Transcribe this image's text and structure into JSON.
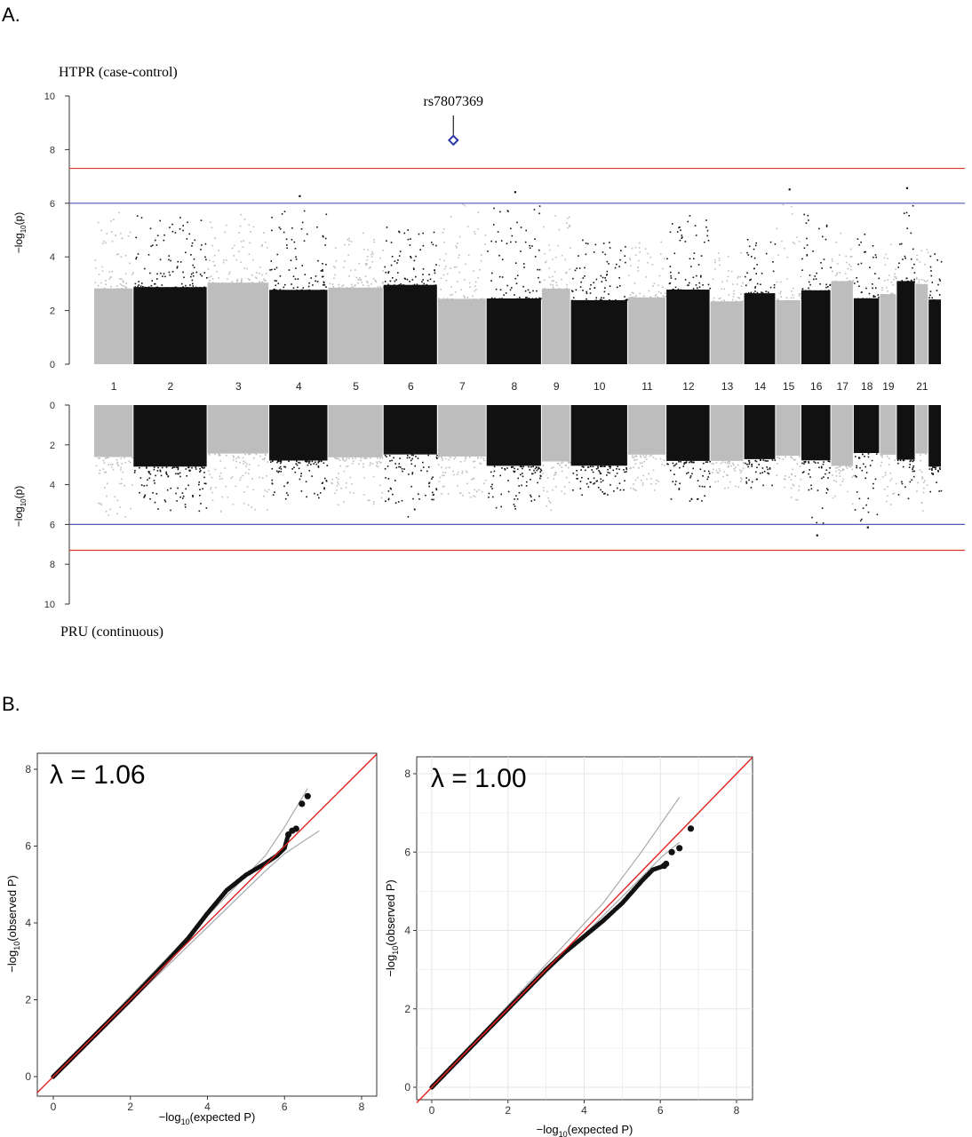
{
  "panel_a_label": "A.",
  "panel_b_label": "B.",
  "chart_data": [
    {
      "type": "scatter",
      "subtype": "mirrored-manhattan",
      "top_title": "HTPR (case-control)",
      "bottom_title": "PRU (continuous)",
      "ylabel": "−log10(p)",
      "ylabel_base": "−log",
      "ylabel_sub": "10",
      "ylabel_tail": "(p)",
      "ylim": [
        0,
        10
      ],
      "yticks": [
        0,
        2,
        4,
        6,
        8,
        10
      ],
      "threshold_lines": [
        {
          "value": 7.3,
          "color": "#e0342f"
        },
        {
          "value": 6.0,
          "color": "#4f5ab4"
        }
      ],
      "chromosome_labels": [
        "1",
        "2",
        "3",
        "4",
        "5",
        "6",
        "7",
        "8",
        "9",
        "10",
        "11",
        "12",
        "13",
        "14",
        "15",
        "16",
        "17",
        "18",
        "19",
        "21"
      ],
      "chromosomes": [
        {
          "chr": 1,
          "color": "#bdbdbd",
          "top_max": 5.7,
          "bottom_max": 5.6
        },
        {
          "chr": 2,
          "color": "#111111",
          "top_max": 5.6,
          "bottom_max": 5.3
        },
        {
          "chr": 3,
          "color": "#bdbdbd",
          "top_max": 5.8,
          "bottom_max": 5.5
        },
        {
          "chr": 4,
          "color": "#111111",
          "top_max": 6.3,
          "bottom_max": 4.7
        },
        {
          "chr": 5,
          "color": "#bdbdbd",
          "top_max": 5.1,
          "bottom_max": 5.0
        },
        {
          "chr": 6,
          "color": "#111111",
          "top_max": 5.2,
          "bottom_max": 5.6
        },
        {
          "chr": 7,
          "color": "#bdbdbd",
          "top_max": 8.35,
          "bottom_max": 4.6
        },
        {
          "chr": 8,
          "color": "#111111",
          "top_max": 6.45,
          "bottom_max": 5.2
        },
        {
          "chr": 9,
          "color": "#bdbdbd",
          "top_max": 5.7,
          "bottom_max": 5.5
        },
        {
          "chr": 10,
          "color": "#111111",
          "top_max": 4.7,
          "bottom_max": 4.5
        },
        {
          "chr": 11,
          "color": "#bdbdbd",
          "top_max": 4.6,
          "bottom_max": 4.4
        },
        {
          "chr": 12,
          "color": "#111111",
          "top_max": 5.6,
          "bottom_max": 4.8
        },
        {
          "chr": 13,
          "color": "#bdbdbd",
          "top_max": 4.2,
          "bottom_max": 4.2
        },
        {
          "chr": 14,
          "color": "#111111",
          "top_max": 4.8,
          "bottom_max": 4.3
        },
        {
          "chr": 15,
          "color": "#bdbdbd",
          "top_max": 6.55,
          "bottom_max": 5.0
        },
        {
          "chr": 16,
          "color": "#111111",
          "top_max": 5.8,
          "bottom_max": 6.5
        },
        {
          "chr": 17,
          "color": "#bdbdbd",
          "top_max": 5.0,
          "bottom_max": 5.0
        },
        {
          "chr": 18,
          "color": "#111111",
          "top_max": 5.2,
          "bottom_max": 6.1
        },
        {
          "chr": 19,
          "color": "#bdbdbd",
          "top_max": 4.7,
          "bottom_max": 5.4
        },
        {
          "chr": 20,
          "color": "#111111",
          "top_max": 6.6,
          "bottom_max": 5.1
        },
        {
          "chr": 21,
          "color": "#bdbdbd",
          "top_max": 4.5,
          "bottom_max": 5.3
        },
        {
          "chr": 22,
          "color": "#111111",
          "top_max": 4.3,
          "bottom_max": 4.4
        }
      ],
      "highlight": {
        "label": "rs7807369",
        "chr": 7,
        "value": 8.35,
        "color": "#2b36a8"
      }
    },
    {
      "type": "scatter",
      "subtype": "qq",
      "annotation": "λ = 1.06",
      "xlabel_base": "−log",
      "xlabel_sub": "10",
      "xlabel_tail": "(expected P)",
      "ylabel_base": "−log",
      "ylabel_sub": "10",
      "ylabel_tail": "(observed P)",
      "xlim": [
        0,
        8
      ],
      "ylim": [
        0,
        8
      ],
      "xticks": [
        0,
        2,
        4,
        6,
        8
      ],
      "yticks": [
        0,
        2,
        4,
        6,
        8
      ],
      "grid": false,
      "points": [
        [
          0,
          0
        ],
        [
          1,
          1
        ],
        [
          2,
          2
        ],
        [
          3,
          3.05
        ],
        [
          3.5,
          3.6
        ],
        [
          4,
          4.25
        ],
        [
          4.5,
          4.85
        ],
        [
          5,
          5.25
        ],
        [
          5.5,
          5.55
        ],
        [
          5.8,
          5.75
        ],
        [
          6,
          5.95
        ],
        [
          6.1,
          6.3
        ],
        [
          6.2,
          6.4
        ],
        [
          6.3,
          6.45
        ],
        [
          6.45,
          7.1
        ],
        [
          6.6,
          7.3
        ]
      ],
      "ci_upper": [
        [
          5.5,
          5.75
        ],
        [
          6,
          6.5
        ],
        [
          6.6,
          7.5
        ]
      ],
      "ci_lower": [
        [
          5.5,
          5.35
        ],
        [
          6,
          5.8
        ],
        [
          6.9,
          6.4
        ]
      ]
    },
    {
      "type": "scatter",
      "subtype": "qq",
      "annotation": "λ = 1.00",
      "xlabel_base": "−log",
      "xlabel_sub": "10",
      "xlabel_tail": "(expected P)",
      "ylabel_base": "−log",
      "ylabel_sub": "10",
      "ylabel_tail": "(observed P)",
      "xlim": [
        0,
        8
      ],
      "ylim": [
        0,
        8
      ],
      "xticks": [
        0,
        2,
        4,
        6,
        8
      ],
      "yticks": [
        0,
        2,
        4,
        6,
        8
      ],
      "grid": true,
      "points": [
        [
          0,
          0
        ],
        [
          1,
          1
        ],
        [
          2,
          2
        ],
        [
          3,
          3
        ],
        [
          3.5,
          3.45
        ],
        [
          4,
          3.85
        ],
        [
          4.5,
          4.25
        ],
        [
          5,
          4.7
        ],
        [
          5.5,
          5.25
        ],
        [
          5.8,
          5.55
        ],
        [
          6.1,
          5.65
        ],
        [
          6.15,
          5.7
        ],
        [
          6.3,
          6.0
        ],
        [
          6.5,
          6.1
        ],
        [
          6.8,
          6.6
        ]
      ],
      "ci_upper": [
        [
          4.5,
          4.7
        ],
        [
          5.5,
          6.0
        ],
        [
          6.5,
          7.4
        ]
      ],
      "ci_lower": [
        [
          5.5,
          5.35
        ],
        [
          6,
          5.85
        ],
        [
          6.5,
          6.25
        ]
      ]
    }
  ]
}
